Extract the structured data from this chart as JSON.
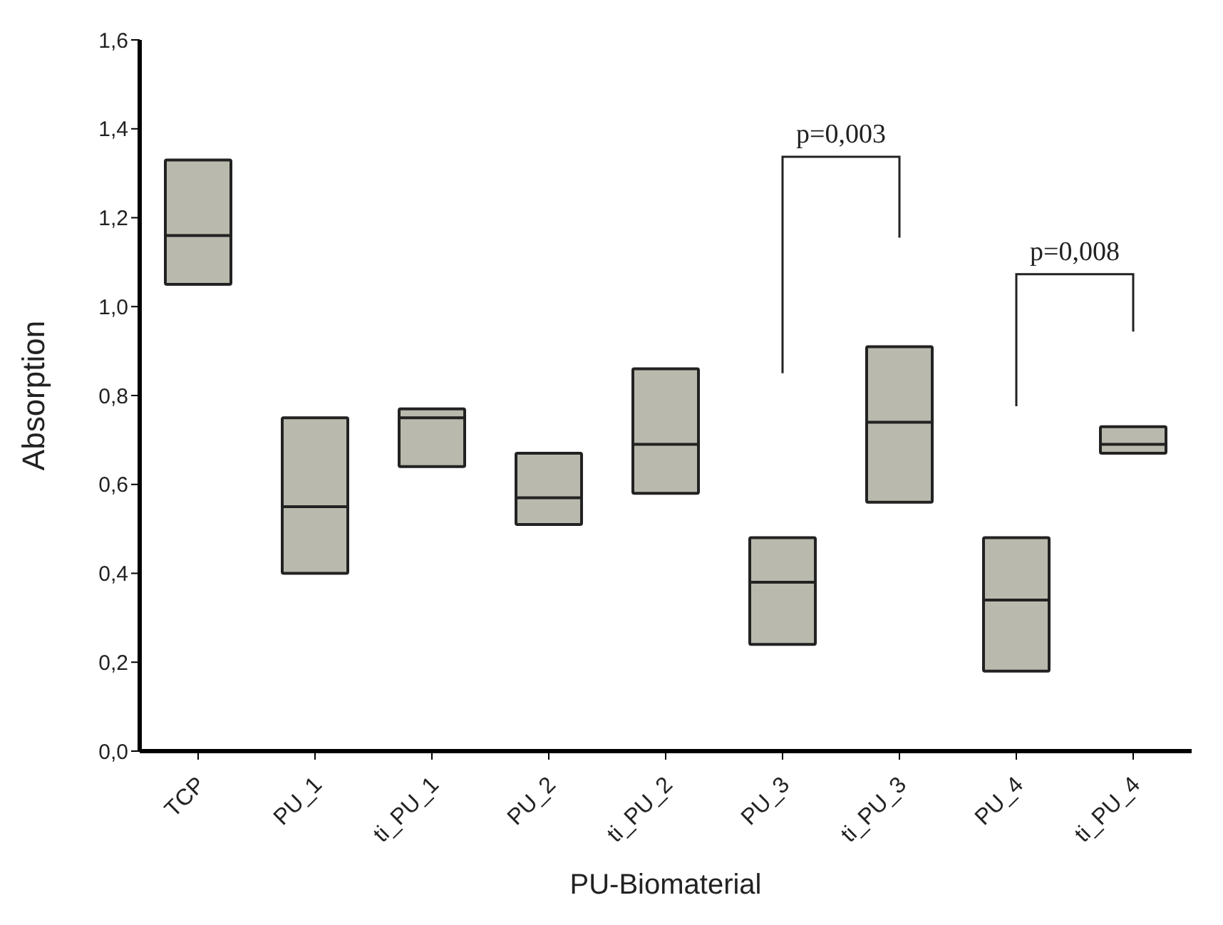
{
  "chart_data": {
    "type": "box",
    "xlabel": "PU-Biomaterial",
    "ylabel": "Absorption",
    "categories": [
      "TCP",
      "PU_1",
      "ti_PU_1",
      "PU_2",
      "ti_PU_2",
      "PU_3",
      "ti_PU_3",
      "PU_4",
      "ti_PU_4"
    ],
    "series": [
      {
        "color": "#b9b9ad",
        "boxes": [
          {
            "low": 1.05,
            "q1": 1.05,
            "median": 1.16,
            "q3": 1.33,
            "high": 1.33
          },
          {
            "low": 0.4,
            "q1": 0.4,
            "median": 0.55,
            "q3": 0.75,
            "high": 0.75
          },
          {
            "low": 0.64,
            "q1": 0.64,
            "median": 0.75,
            "q3": 0.77,
            "high": 0.77
          },
          {
            "low": 0.51,
            "q1": 0.51,
            "median": 0.57,
            "q3": 0.67,
            "high": 0.67
          },
          {
            "low": 0.58,
            "q1": 0.58,
            "median": 0.69,
            "q3": 0.86,
            "high": 0.86
          },
          {
            "low": 0.24,
            "q1": 0.24,
            "median": 0.38,
            "q3": 0.48,
            "high": 0.48
          },
          {
            "low": 0.56,
            "q1": 0.56,
            "median": 0.74,
            "q3": 0.91,
            "high": 0.91
          },
          {
            "low": 0.18,
            "q1": 0.18,
            "median": 0.34,
            "q3": 0.48,
            "high": 0.48
          },
          {
            "low": 0.67,
            "q1": 0.67,
            "median": 0.69,
            "q3": 0.73,
            "high": 0.73
          }
        ]
      }
    ],
    "ylim": [
      0,
      1.6
    ],
    "yticks": [
      {
        "value": 0,
        "label": "0,0"
      },
      {
        "value": 0.2,
        "label": "0,2"
      },
      {
        "value": 0.4,
        "label": "0,4"
      },
      {
        "value": 0.6,
        "label": "0,6"
      },
      {
        "value": 0.8,
        "label": "0,8"
      },
      {
        "value": 1.0,
        "label": "1,0"
      },
      {
        "value": 1.2,
        "label": "1,2"
      },
      {
        "value": 1.4,
        "label": "1,4"
      },
      {
        "value": 1.6,
        "label": "1,6"
      }
    ],
    "grid": false,
    "legend": false,
    "annotations": [
      "p=0,003",
      "p=0,008"
    ]
  }
}
